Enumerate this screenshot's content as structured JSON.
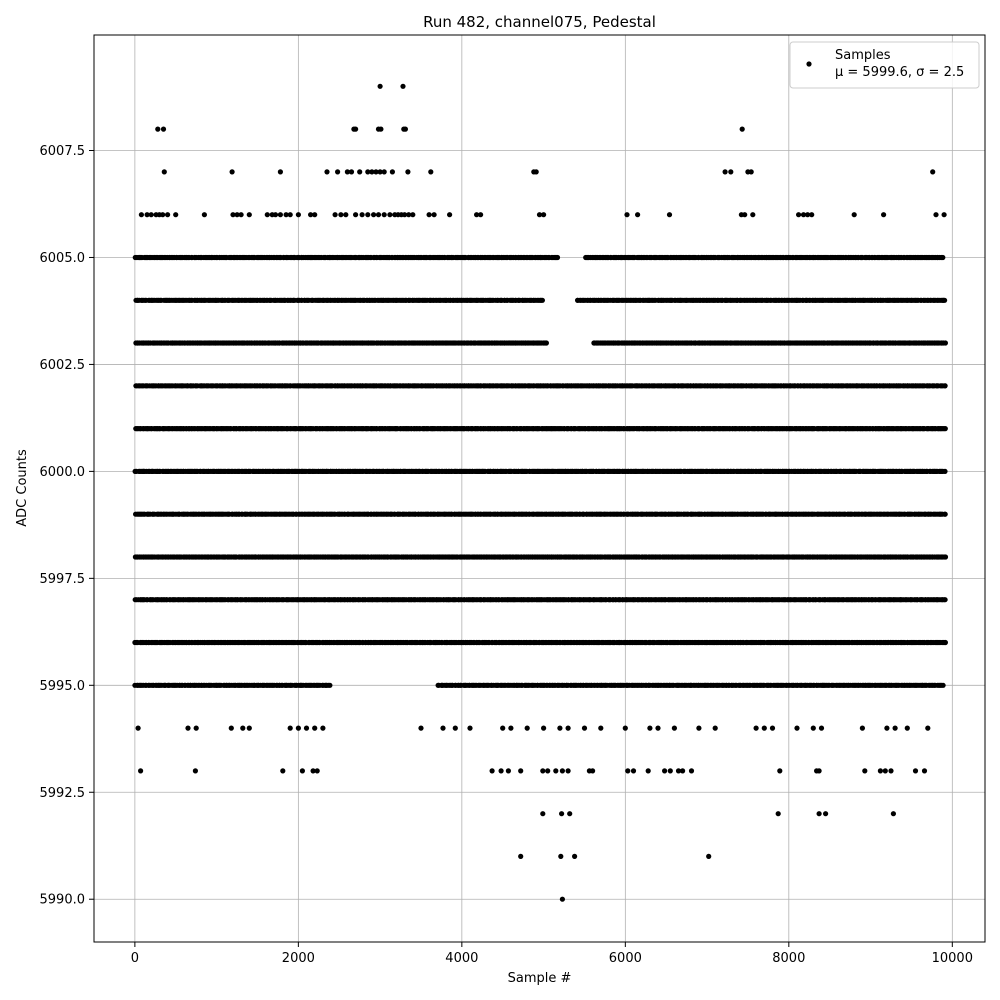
{
  "chart_data": {
    "type": "scatter",
    "title": "Run 482, channel075, Pedestal",
    "xlabel": "Sample #",
    "ylabel": "ADC Counts",
    "xlim": [
      -500,
      10400
    ],
    "ylim": [
      5989.0,
      6010.2
    ],
    "xticks": [
      0,
      2000,
      4000,
      6000,
      8000,
      10000
    ],
    "yticks": [
      5990.0,
      5992.5,
      5995.0,
      5997.5,
      6000.0,
      6002.5,
      6005.0,
      6007.5
    ],
    "xtick_labels": [
      "0",
      "2000",
      "4000",
      "6000",
      "8000",
      "10000"
    ],
    "ytick_labels": [
      "5990.0",
      "5992.5",
      "5995.0",
      "5997.5",
      "6000.0",
      "6002.5",
      "6005.0",
      "6007.5"
    ],
    "grid": true,
    "legend": {
      "placement": "top-right",
      "line1": "Samples",
      "line2": "μ = 5999.6, σ = 2.5"
    },
    "marker_color": "#000000",
    "series": [
      {
        "name": "Samples",
        "description_of_density": "dense bands at integer ADC levels",
        "levels": [
          {
            "y": 6001,
            "x_ranges": [
              [
                0,
                9920
              ]
            ]
          },
          {
            "y": 6000,
            "x_ranges": [
              [
                0,
                9920
              ]
            ]
          },
          {
            "y": 6002,
            "x_ranges": [
              [
                0,
                9920
              ]
            ]
          },
          {
            "y": 5999,
            "x_ranges": [
              [
                0,
                9920
              ]
            ]
          },
          {
            "y": 5998,
            "x_ranges": [
              [
                0,
                9920
              ]
            ]
          },
          {
            "y": 5997,
            "x_ranges": [
              [
                0,
                9920
              ]
            ]
          },
          {
            "y": 6003,
            "x_ranges": [
              [
                0,
                5050
              ],
              [
                5600,
                9920
              ]
            ]
          },
          {
            "y": 5996,
            "x_ranges": [
              [
                0,
                9920
              ]
            ]
          },
          {
            "y": 6004,
            "x_ranges": [
              [
                0,
                5000
              ],
              [
                5400,
                9920
              ]
            ]
          },
          {
            "y": 5995,
            "x_ranges": [
              [
                0,
                2400
              ],
              [
                3700,
                9900
              ]
            ]
          },
          {
            "y": 6005,
            "x_ranges": [
              [
                0,
                5200
              ],
              [
                5500,
                9900
              ]
            ]
          }
        ],
        "points": [
          {
            "x": 280,
            "y": 6008
          },
          {
            "x": 350,
            "y": 6008
          },
          {
            "x": 3000,
            "y": 6009
          },
          {
            "x": 3280,
            "y": 6009
          },
          {
            "x": 2680,
            "y": 6008
          },
          {
            "x": 2700,
            "y": 6008
          },
          {
            "x": 2980,
            "y": 6008
          },
          {
            "x": 3010,
            "y": 6008
          },
          {
            "x": 3290,
            "y": 6008
          },
          {
            "x": 3310,
            "y": 6008
          },
          {
            "x": 7430,
            "y": 6008
          },
          {
            "x": 360,
            "y": 6007
          },
          {
            "x": 1190,
            "y": 6007
          },
          {
            "x": 1780,
            "y": 6007
          },
          {
            "x": 2350,
            "y": 6007
          },
          {
            "x": 2480,
            "y": 6007
          },
          {
            "x": 2600,
            "y": 6007
          },
          {
            "x": 2650,
            "y": 6007
          },
          {
            "x": 2750,
            "y": 6007
          },
          {
            "x": 2850,
            "y": 6007
          },
          {
            "x": 2900,
            "y": 6007
          },
          {
            "x": 2950,
            "y": 6007
          },
          {
            "x": 3000,
            "y": 6007
          },
          {
            "x": 3050,
            "y": 6007
          },
          {
            "x": 3150,
            "y": 6007
          },
          {
            "x": 3340,
            "y": 6007
          },
          {
            "x": 3620,
            "y": 6007
          },
          {
            "x": 4880,
            "y": 6007
          },
          {
            "x": 4910,
            "y": 6007
          },
          {
            "x": 7220,
            "y": 6007
          },
          {
            "x": 7290,
            "y": 6007
          },
          {
            "x": 7500,
            "y": 6007
          },
          {
            "x": 7540,
            "y": 6007
          },
          {
            "x": 9760,
            "y": 6007
          },
          {
            "x": 80,
            "y": 6006
          },
          {
            "x": 150,
            "y": 6006
          },
          {
            "x": 200,
            "y": 6006
          },
          {
            "x": 260,
            "y": 6006
          },
          {
            "x": 300,
            "y": 6006
          },
          {
            "x": 340,
            "y": 6006
          },
          {
            "x": 400,
            "y": 6006
          },
          {
            "x": 500,
            "y": 6006
          },
          {
            "x": 850,
            "y": 6006
          },
          {
            "x": 1200,
            "y": 6006
          },
          {
            "x": 1250,
            "y": 6006
          },
          {
            "x": 1300,
            "y": 6006
          },
          {
            "x": 1400,
            "y": 6006
          },
          {
            "x": 1620,
            "y": 6006
          },
          {
            "x": 1680,
            "y": 6006
          },
          {
            "x": 1720,
            "y": 6006
          },
          {
            "x": 1780,
            "y": 6006
          },
          {
            "x": 1850,
            "y": 6006
          },
          {
            "x": 1900,
            "y": 6006
          },
          {
            "x": 2000,
            "y": 6006
          },
          {
            "x": 2150,
            "y": 6006
          },
          {
            "x": 2200,
            "y": 6006
          },
          {
            "x": 2450,
            "y": 6006
          },
          {
            "x": 2520,
            "y": 6006
          },
          {
            "x": 2580,
            "y": 6006
          },
          {
            "x": 2700,
            "y": 6006
          },
          {
            "x": 2780,
            "y": 6006
          },
          {
            "x": 2850,
            "y": 6006
          },
          {
            "x": 2920,
            "y": 6006
          },
          {
            "x": 2980,
            "y": 6006
          },
          {
            "x": 3050,
            "y": 6006
          },
          {
            "x": 3120,
            "y": 6006
          },
          {
            "x": 3180,
            "y": 6006
          },
          {
            "x": 3220,
            "y": 6006
          },
          {
            "x": 3260,
            "y": 6006
          },
          {
            "x": 3300,
            "y": 6006
          },
          {
            "x": 3350,
            "y": 6006
          },
          {
            "x": 3400,
            "y": 6006
          },
          {
            "x": 3600,
            "y": 6006
          },
          {
            "x": 3660,
            "y": 6006
          },
          {
            "x": 3850,
            "y": 6006
          },
          {
            "x": 4180,
            "y": 6006
          },
          {
            "x": 4230,
            "y": 6006
          },
          {
            "x": 4950,
            "y": 6006
          },
          {
            "x": 5000,
            "y": 6006
          },
          {
            "x": 6020,
            "y": 6006
          },
          {
            "x": 6150,
            "y": 6006
          },
          {
            "x": 6540,
            "y": 6006
          },
          {
            "x": 7420,
            "y": 6006
          },
          {
            "x": 7460,
            "y": 6006
          },
          {
            "x": 7560,
            "y": 6006
          },
          {
            "x": 8120,
            "y": 6006
          },
          {
            "x": 8180,
            "y": 6006
          },
          {
            "x": 8230,
            "y": 6006
          },
          {
            "x": 8280,
            "y": 6006
          },
          {
            "x": 8800,
            "y": 6006
          },
          {
            "x": 9160,
            "y": 6006
          },
          {
            "x": 9800,
            "y": 6006
          },
          {
            "x": 9900,
            "y": 6006
          },
          {
            "x": 3500,
            "y": 5994
          },
          {
            "x": 3770,
            "y": 5994
          },
          {
            "x": 3920,
            "y": 5994
          },
          {
            "x": 4100,
            "y": 5994
          },
          {
            "x": 4500,
            "y": 5994
          },
          {
            "x": 4600,
            "y": 5994
          },
          {
            "x": 4800,
            "y": 5994
          },
          {
            "x": 5000,
            "y": 5994
          },
          {
            "x": 5200,
            "y": 5994
          },
          {
            "x": 5300,
            "y": 5994
          },
          {
            "x": 5500,
            "y": 5994
          },
          {
            "x": 5700,
            "y": 5994
          },
          {
            "x": 6000,
            "y": 5994
          },
          {
            "x": 6300,
            "y": 5994
          },
          {
            "x": 6400,
            "y": 5994
          },
          {
            "x": 6600,
            "y": 5994
          },
          {
            "x": 6900,
            "y": 5994
          },
          {
            "x": 7100,
            "y": 5994
          },
          {
            "x": 7600,
            "y": 5994
          },
          {
            "x": 7700,
            "y": 5994
          },
          {
            "x": 7800,
            "y": 5994
          },
          {
            "x": 8100,
            "y": 5994
          },
          {
            "x": 8300,
            "y": 5994
          },
          {
            "x": 8400,
            "y": 5994
          },
          {
            "x": 8900,
            "y": 5994
          },
          {
            "x": 9200,
            "y": 5994
          },
          {
            "x": 9300,
            "y": 5994
          },
          {
            "x": 9450,
            "y": 5994
          },
          {
            "x": 9700,
            "y": 5994
          },
          {
            "x": 40,
            "y": 5994
          },
          {
            "x": 650,
            "y": 5994
          },
          {
            "x": 750,
            "y": 5994
          },
          {
            "x": 1180,
            "y": 5994
          },
          {
            "x": 1320,
            "y": 5994
          },
          {
            "x": 1400,
            "y": 5994
          },
          {
            "x": 1900,
            "y": 5994
          },
          {
            "x": 2000,
            "y": 5994
          },
          {
            "x": 2100,
            "y": 5994
          },
          {
            "x": 2200,
            "y": 5994
          },
          {
            "x": 2300,
            "y": 5994
          },
          {
            "x": 70,
            "y": 5993
          },
          {
            "x": 740,
            "y": 5993
          },
          {
            "x": 1810,
            "y": 5993
          },
          {
            "x": 2050,
            "y": 5993
          },
          {
            "x": 2180,
            "y": 5993
          },
          {
            "x": 2230,
            "y": 5993
          },
          {
            "x": 4370,
            "y": 5993
          },
          {
            "x": 4480,
            "y": 5993
          },
          {
            "x": 4570,
            "y": 5993
          },
          {
            "x": 4720,
            "y": 5993
          },
          {
            "x": 4990,
            "y": 5993
          },
          {
            "x": 5050,
            "y": 5993
          },
          {
            "x": 5150,
            "y": 5993
          },
          {
            "x": 5230,
            "y": 5993
          },
          {
            "x": 5300,
            "y": 5993
          },
          {
            "x": 5560,
            "y": 5993
          },
          {
            "x": 5600,
            "y": 5993
          },
          {
            "x": 6030,
            "y": 5993
          },
          {
            "x": 6100,
            "y": 5993
          },
          {
            "x": 6280,
            "y": 5993
          },
          {
            "x": 6480,
            "y": 5993
          },
          {
            "x": 6550,
            "y": 5993
          },
          {
            "x": 6650,
            "y": 5993
          },
          {
            "x": 6700,
            "y": 5993
          },
          {
            "x": 6810,
            "y": 5993
          },
          {
            "x": 7890,
            "y": 5993
          },
          {
            "x": 8340,
            "y": 5993
          },
          {
            "x": 8370,
            "y": 5993
          },
          {
            "x": 8930,
            "y": 5993
          },
          {
            "x": 9120,
            "y": 5993
          },
          {
            "x": 9180,
            "y": 5993
          },
          {
            "x": 9250,
            "y": 5993
          },
          {
            "x": 9550,
            "y": 5993
          },
          {
            "x": 9660,
            "y": 5993
          },
          {
            "x": 4990,
            "y": 5992
          },
          {
            "x": 5220,
            "y": 5992
          },
          {
            "x": 5320,
            "y": 5992
          },
          {
            "x": 7870,
            "y": 5992
          },
          {
            "x": 8370,
            "y": 5992
          },
          {
            "x": 8450,
            "y": 5992
          },
          {
            "x": 9280,
            "y": 5992
          },
          {
            "x": 4720,
            "y": 5991
          },
          {
            "x": 5210,
            "y": 5991
          },
          {
            "x": 5380,
            "y": 5991
          },
          {
            "x": 7020,
            "y": 5991
          },
          {
            "x": 5230,
            "y": 5990
          }
        ]
      }
    ]
  }
}
